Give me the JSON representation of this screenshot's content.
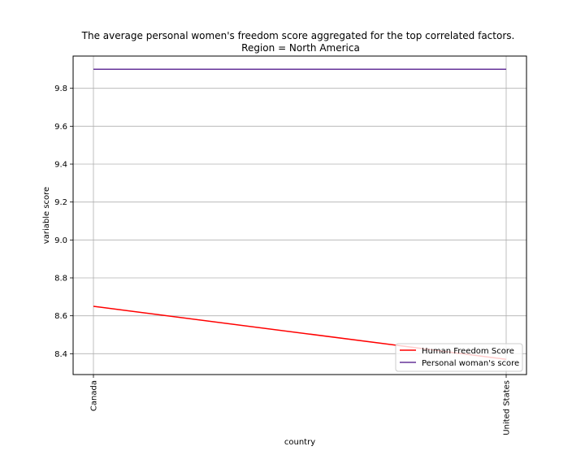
{
  "chart_data": {
    "type": "line",
    "title": "The average personal women's freedom score aggregated for the top correlated factors.",
    "subtitle": "Region = North America",
    "xlabel": "country",
    "ylabel": "variable score",
    "categories": [
      "Canada",
      "United States"
    ],
    "y_ticks": [
      "8.4",
      "8.6",
      "8.8",
      "9.0",
      "9.2",
      "9.4",
      "9.6",
      "9.8"
    ],
    "ylim": [
      8.29,
      9.97
    ],
    "grid": true,
    "legend_position": "lower-right",
    "series": [
      {
        "name": "Human Freedom Score",
        "values": [
          8.65,
          8.37
        ],
        "color": "#ff0000"
      },
      {
        "name": "Personal woman's score",
        "values": [
          9.9,
          9.9
        ],
        "color": "#663399"
      }
    ]
  }
}
